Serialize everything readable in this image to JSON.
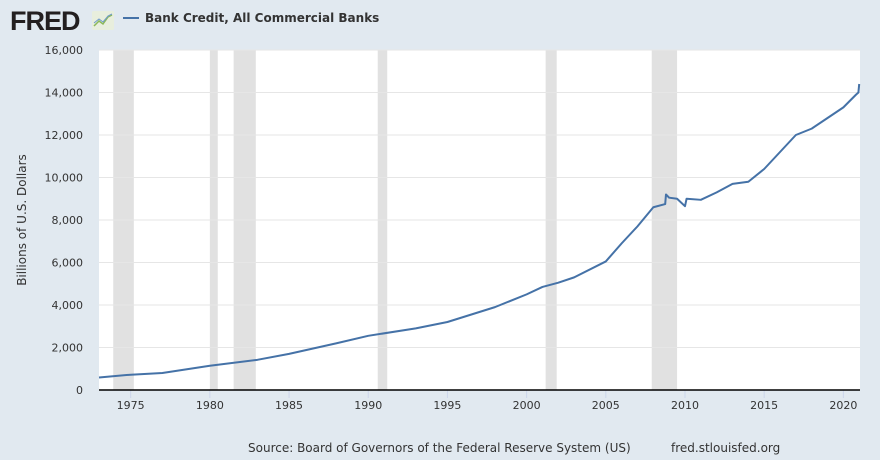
{
  "header": {
    "logo": "FRED",
    "legend_label": "Bank Credit, All Commercial Banks",
    "line_color": "#4572a7"
  },
  "footer": {
    "source": "Source: Board of Governors of the Federal Reserve System (US)",
    "site": "fred.stlouisfed.org"
  },
  "chart_data": {
    "type": "line",
    "title": "Bank Credit, All Commercial Banks",
    "xlabel": "",
    "ylabel": "Billions of U.S. Dollars",
    "xlim": [
      1973,
      2021.05
    ],
    "ylim": [
      0,
      16000
    ],
    "grid": true,
    "legend": "top-left",
    "xticks": [
      1975,
      1980,
      1985,
      1990,
      1995,
      2000,
      2005,
      2010,
      2015,
      2020
    ],
    "yticks": [
      0,
      2000,
      4000,
      6000,
      8000,
      10000,
      12000,
      14000,
      16000
    ],
    "ytick_labels": [
      "0",
      "2,000",
      "4,000",
      "6,000",
      "8,000",
      "10,000",
      "12,000",
      "14,000",
      "16,000"
    ],
    "recessions": [
      [
        1973.9,
        1975.2
      ],
      [
        1980.0,
        1980.5
      ],
      [
        1981.5,
        1982.9
      ],
      [
        1990.6,
        1991.2
      ],
      [
        2001.2,
        2001.9
      ],
      [
        2007.9,
        2009.5
      ]
    ],
    "series": [
      {
        "name": "Bank Credit, All Commercial Banks",
        "x": [
          1973,
          1975,
          1977,
          1980,
          1983,
          1985,
          1988,
          1990,
          1993,
          1995,
          1998,
          2000,
          2001,
          2002,
          2003,
          2005,
          2006,
          2007,
          2008,
          2008.75,
          2008.8,
          2009,
          2009.5,
          2010.0,
          2010.1,
          2011,
          2012,
          2013,
          2014,
          2015,
          2016,
          2017,
          2018,
          2019,
          2020.0,
          2020.8,
          2020.95,
          2021.0
        ],
        "values": [
          590,
          720,
          800,
          1140,
          1420,
          1700,
          2200,
          2550,
          2900,
          3200,
          3900,
          4500,
          4850,
          5050,
          5300,
          6050,
          6900,
          7700,
          8600,
          8750,
          9200,
          9050,
          9000,
          8650,
          9000,
          8950,
          9300,
          9700,
          9800,
          10400,
          11200,
          12000,
          12300,
          12800,
          13300,
          13900,
          14000,
          14400
        ]
      }
    ]
  }
}
